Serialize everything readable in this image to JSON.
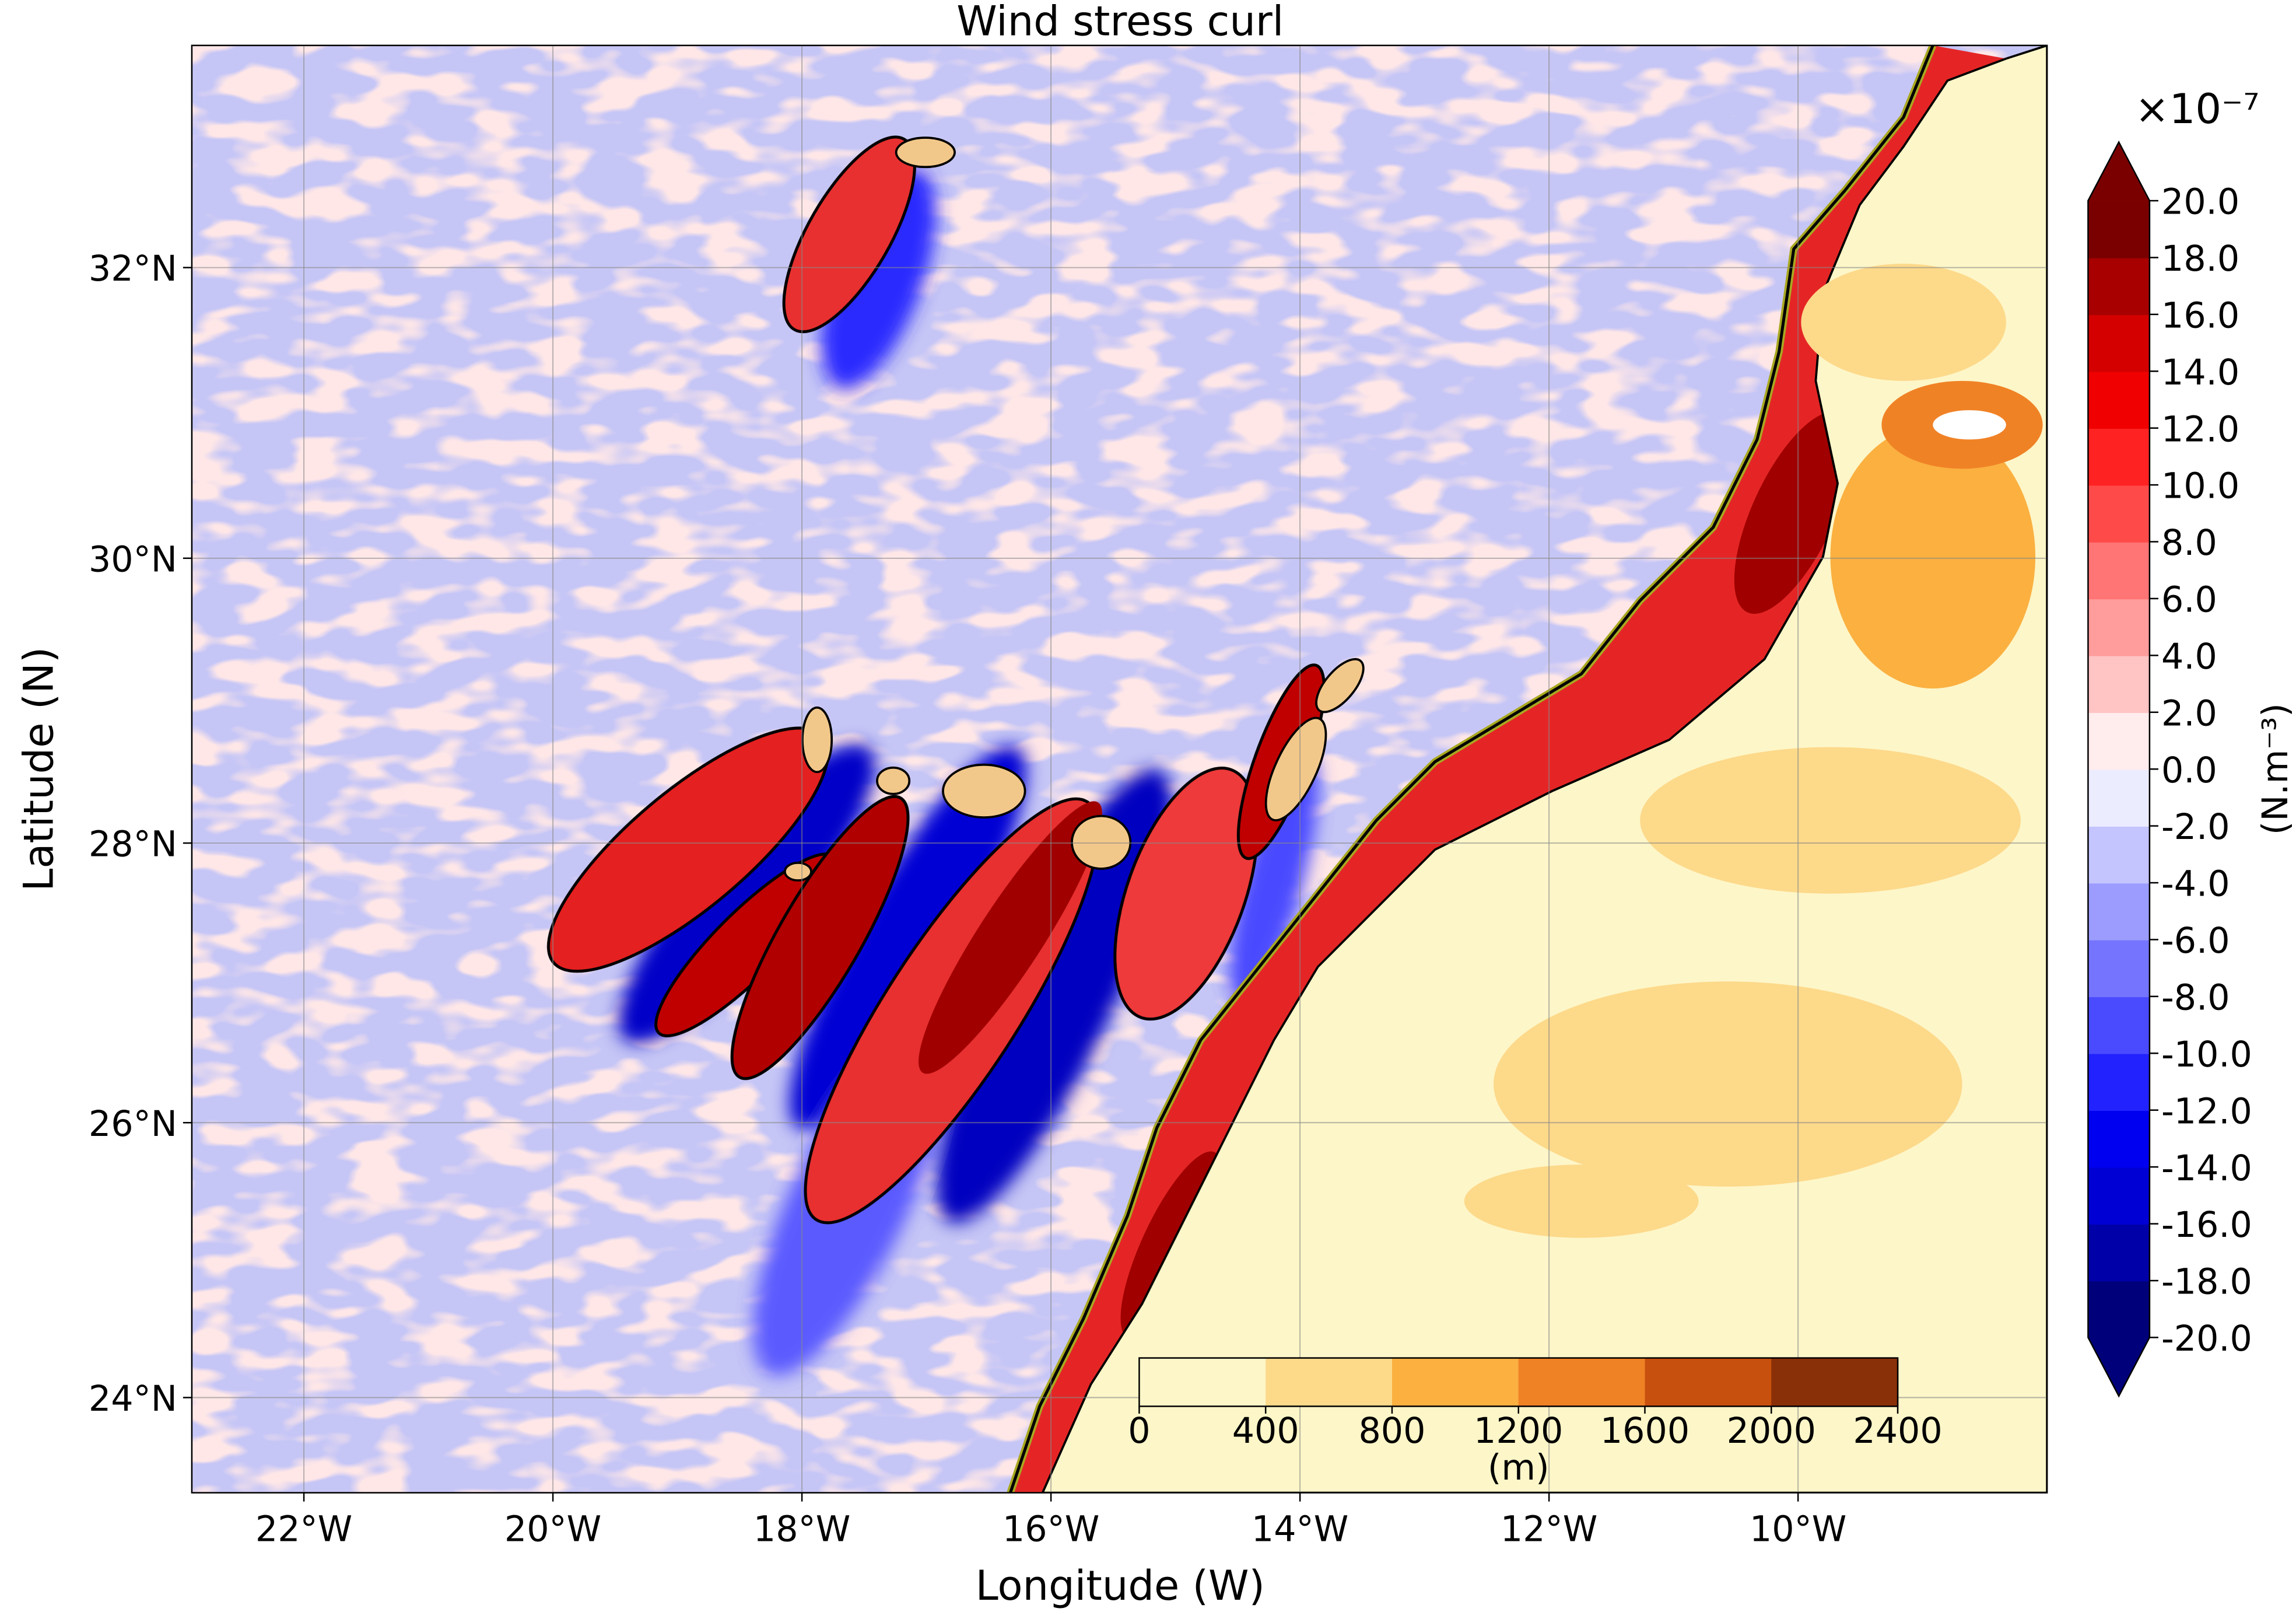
{
  "chart_data": {
    "type": "map",
    "title": "Wind stress curl",
    "x_label": "Longitude (W)",
    "y_label": "Latitude (N)",
    "projection": "mercator",
    "xlim": [
      -22.9,
      -8.0
    ],
    "ylim": [
      23.3,
      33.5
    ],
    "xticks": [
      {
        "value": -22,
        "label": "22°W"
      },
      {
        "value": -20,
        "label": "20°W"
      },
      {
        "value": -18,
        "label": "18°W"
      },
      {
        "value": -16,
        "label": "16°W"
      },
      {
        "value": -14,
        "label": "14°W"
      },
      {
        "value": -12,
        "label": "12°W"
      },
      {
        "value": -10,
        "label": "10°W"
      }
    ],
    "yticks": [
      {
        "value": 24,
        "label": "24°N"
      },
      {
        "value": 26,
        "label": "26°N"
      },
      {
        "value": 28,
        "label": "28°N"
      },
      {
        "value": 30,
        "label": "30°N"
      },
      {
        "value": 32,
        "label": "32°N"
      }
    ],
    "grid": true,
    "colorbar": {
      "label": "(N.m⁻³)",
      "multiplier": "×10⁻⁷",
      "lim": [
        -20,
        20
      ],
      "extend": "both",
      "ticks": [
        {
          "value": -20,
          "label": "-20.0"
        },
        {
          "value": -18,
          "label": "-18.0"
        },
        {
          "value": -16,
          "label": "-16.0"
        },
        {
          "value": -14,
          "label": "-14.0"
        },
        {
          "value": -12,
          "label": "-12.0"
        },
        {
          "value": -10,
          "label": "-10.0"
        },
        {
          "value": -8,
          "label": "-8.0"
        },
        {
          "value": -6,
          "label": "-6.0"
        },
        {
          "value": -4,
          "label": "-4.0"
        },
        {
          "value": -2,
          "label": "-2.0"
        },
        {
          "value": 0,
          "label": "0.0"
        },
        {
          "value": 2,
          "label": "2.0"
        },
        {
          "value": 4,
          "label": "4.0"
        },
        {
          "value": 6,
          "label": "6.0"
        },
        {
          "value": 8,
          "label": "8.0"
        },
        {
          "value": 10,
          "label": "10.0"
        },
        {
          "value": 12,
          "label": "12.0"
        },
        {
          "value": 14,
          "label": "14.0"
        },
        {
          "value": 16,
          "label": "16.0"
        },
        {
          "value": 18,
          "label": "18.0"
        },
        {
          "value": 20,
          "label": "20.0"
        }
      ],
      "colors": [
        "#00007a",
        "#0000a8",
        "#0000d4",
        "#0000f0",
        "#2222ff",
        "#4a4aff",
        "#7474ff",
        "#9c9cff",
        "#c4c4ff",
        "#ececff",
        "#ffecec",
        "#ffc4c4",
        "#ff9c9c",
        "#ff7474",
        "#ff4a4a",
        "#ff2222",
        "#f00000",
        "#d40000",
        "#a80000",
        "#7a0000"
      ]
    },
    "inset_colorbar": {
      "label": "(m)",
      "lim": [
        0,
        2400
      ],
      "ticks": [
        0,
        400,
        800,
        1200,
        1600,
        2000,
        2400
      ],
      "colors": [
        "#fdf6c8",
        "#fdd98a",
        "#fbb040",
        "#f08226",
        "#c8500e",
        "#8a3008"
      ]
    }
  }
}
